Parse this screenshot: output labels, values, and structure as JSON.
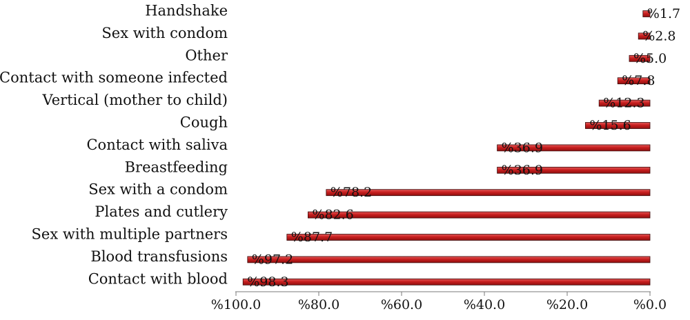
{
  "chart_data": {
    "type": "bar",
    "orientation": "horizontal",
    "x_axis_reversed": true,
    "categories": [
      "Handshake",
      "Sex with condom",
      "Other",
      "Contact with someone infected",
      "Vertical (mother to child)",
      "Cough",
      "Contact with saliva",
      "Breastfeeding",
      "Sex with a condom",
      "Plates and cutlery",
      "Sex with multiple partners",
      "Blood transfusions",
      "Contact with blood"
    ],
    "values": [
      1.7,
      2.8,
      5.0,
      7.8,
      12.3,
      15.6,
      36.9,
      36.9,
      78.2,
      82.6,
      87.7,
      97.2,
      98.3
    ],
    "value_labels": [
      "%1.7",
      "%2.8",
      "%5.0",
      "%7.8",
      "%12.3",
      "%15.6",
      "%36.9",
      "%36.9",
      "%78.2",
      "%82.6",
      "%87.7",
      "%97.2",
      "%98.3"
    ],
    "xlim": [
      0,
      100
    ],
    "x_ticks": [
      100,
      80,
      60,
      40,
      20,
      0
    ],
    "x_tick_labels": [
      "%100.0",
      "%80.0",
      "%60.0",
      "%40.0",
      "%20.0",
      "%0.0"
    ],
    "bar_color": "#c81e1e",
    "bar_edge_color": "#3a0a0a",
    "grid": false,
    "legend": "none",
    "title": "",
    "xlabel": "",
    "ylabel": ""
  }
}
